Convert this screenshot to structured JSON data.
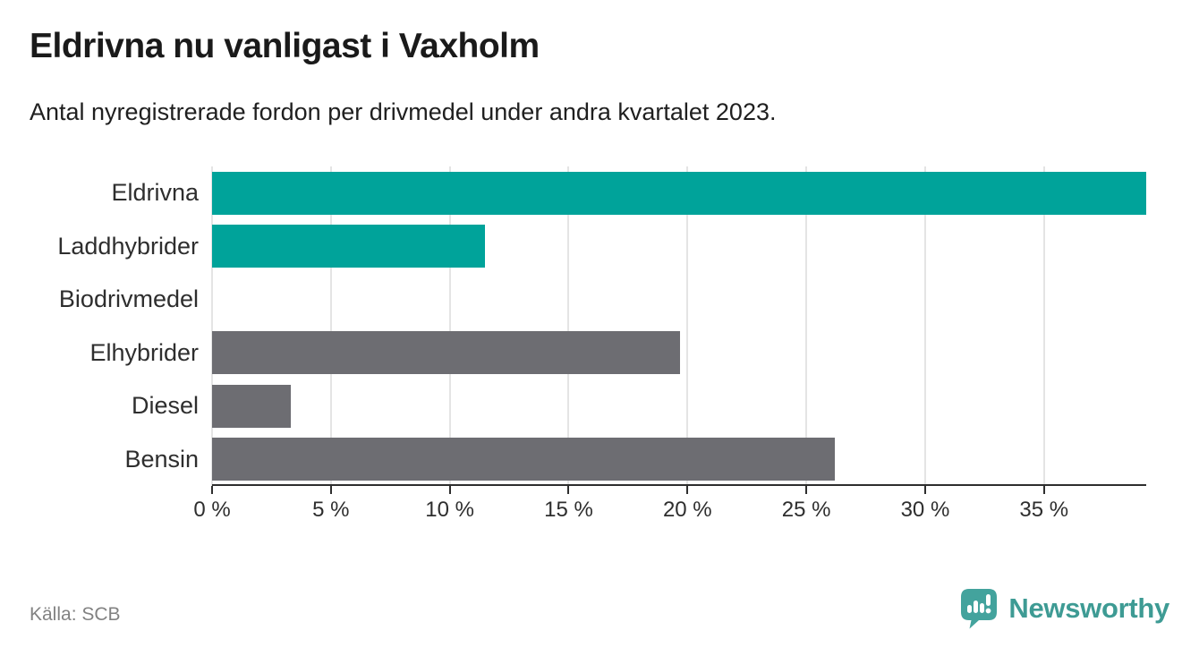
{
  "header": {
    "title": "Eldrivna nu vanligast i Vaxholm",
    "subtitle": "Antal nyregistrerade fordon per drivmedel under andra kvartalet 2023."
  },
  "chart_data": {
    "type": "bar",
    "orientation": "horizontal",
    "title": "Eldrivna nu vanligast i Vaxholm",
    "subtitle": "Antal nyregistrerade fordon per drivmedel under andra kvartalet 2023.",
    "categories": [
      "Eldrivna",
      "Laddhybrider",
      "Biodrivmedel",
      "Elhybrider",
      "Diesel",
      "Bensin"
    ],
    "values": [
      39.3,
      11.5,
      0,
      19.7,
      3.3,
      26.2
    ],
    "unit": "%",
    "bar_colors": [
      "#00a39a",
      "#00a39a",
      "#6d6d72",
      "#6d6d72",
      "#6d6d72",
      "#6d6d72"
    ],
    "highlight_color": "#00a39a",
    "default_color": "#6d6d72",
    "x_ticks": [
      0,
      5,
      10,
      15,
      20,
      25,
      30,
      35
    ],
    "x_tick_labels": [
      "0 %",
      "5 %",
      "10 %",
      "15 %",
      "20 %",
      "25 %",
      "30 %",
      "35 %"
    ],
    "xlim": [
      0,
      39.3
    ],
    "grid": true,
    "legend": false
  },
  "footer": {
    "source": "Källa: SCB",
    "brand": "Newsworthy"
  },
  "colors": {
    "bar_teal": "#00a39a",
    "bar_gray": "#6d6d72",
    "gridline": "#e4e4e4",
    "axis": "#2e2e2e",
    "title_text": "#1a1a1a",
    "label_text": "#2e2e2e",
    "source_text": "#828282",
    "logo_teal": "#43a39d",
    "brand_text": "#3e9b94"
  }
}
